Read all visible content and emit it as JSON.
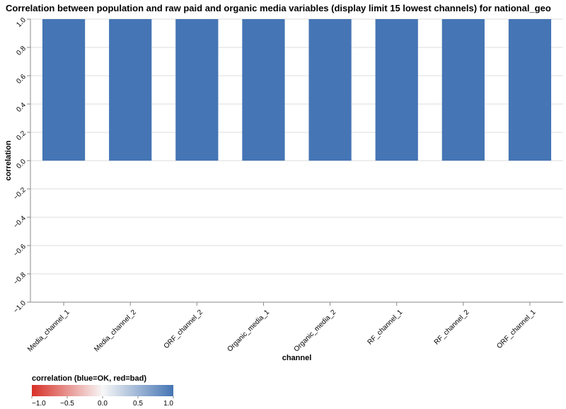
{
  "chart_data": {
    "type": "bar",
    "title": "Correlation between population and raw paid and organic media variables (display limit 15 lowest channels) for national_geo",
    "xlabel": "channel",
    "ylabel": "correlation",
    "ylim": [
      -1.0,
      1.0
    ],
    "y_ticks": [
      1.0,
      0.8,
      0.6,
      0.4,
      0.2,
      0.0,
      -0.2,
      -0.4,
      -0.6,
      -0.8,
      -1.0
    ],
    "y_tick_labels": [
      "1.0",
      "0.8",
      "0.6",
      "0.4",
      "0.2",
      "0.0",
      "−0.2",
      "−0.4",
      "−0.6",
      "−0.8",
      "−1.0"
    ],
    "grid": true,
    "categories": [
      "Media_channel_1",
      "Media_channel_2",
      "ORF_channel_2",
      "Organic_media_1",
      "Organic_media_2",
      "RF_channel_1",
      "RF_channel_2",
      "ORF_channel_1"
    ],
    "values": [
      1.0,
      1.0,
      1.0,
      1.0,
      1.0,
      1.0,
      1.0,
      1.0
    ],
    "bar_color": "#4575b4",
    "legend": {
      "title": "correlation (blue=OK, red=bad)",
      "position": "bottom-left",
      "type": "gradient",
      "domain": [
        -1.0,
        1.0
      ],
      "stops": [
        "#d73027",
        "#f7f7f7",
        "#4575b4"
      ],
      "ticks": [
        -1.0,
        -0.5,
        0.0,
        0.5,
        1.0
      ],
      "tick_labels": [
        "−1.0",
        "−0.5",
        "0.0",
        "0.5",
        "1.0"
      ]
    }
  }
}
